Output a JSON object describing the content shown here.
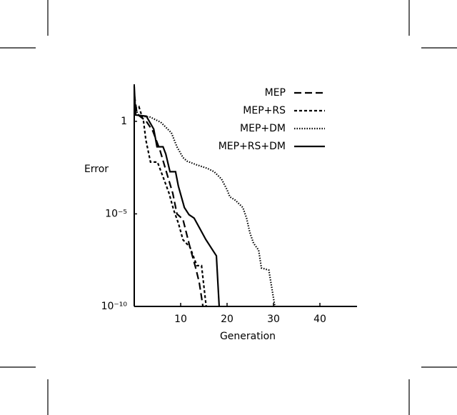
{
  "chart_data": {
    "type": "line",
    "x_label": "Generation",
    "y_label": "Error",
    "yscale": "log",
    "xlim": [
      0,
      48
    ],
    "xticks": [
      10,
      20,
      30,
      40
    ],
    "ylim": [
      1e-10,
      100
    ],
    "yticks": [
      1,
      {
        "value": 1e-05,
        "label": "10⁻⁵"
      },
      {
        "value": 1e-10,
        "label": "10⁻¹⁰"
      }
    ],
    "grid": false,
    "legend": "top-right",
    "series": [
      {
        "name": "MEP",
        "color": "#000000",
        "linestyle": "dashed",
        "x": [
          0,
          0.6,
          2.6,
          4,
          5.5,
          7,
          8.3,
          9.2,
          10.5,
          12,
          13.2,
          14,
          14.8
        ],
        "values": [
          30,
          2.5,
          1,
          0.3,
          0.03,
          0.0016,
          0.00013,
          1e-05,
          5e-06,
          1.6e-07,
          1.3e-08,
          2e-09,
          1e-10
        ]
      },
      {
        "name": "MEP+RS",
        "color": "#000000",
        "linestyle": "short-dashed",
        "x": [
          0,
          1,
          2,
          2.5,
          3.5,
          5,
          6.2,
          7.5,
          8.5,
          9.5,
          10.5,
          12,
          13.5,
          14.5,
          15.5
        ],
        "values": [
          5,
          6.3,
          1,
          0.1,
          0.0063,
          0.0063,
          0.001,
          0.00013,
          1.6e-05,
          3.2e-06,
          4e-07,
          1.6e-07,
          1.6e-08,
          1.6e-08,
          1e-10
        ]
      },
      {
        "name": "MEP+DM",
        "color": "#000000",
        "linestyle": "dotted",
        "x": [
          0,
          1.1,
          3.4,
          5.7,
          8,
          9.2,
          10.5,
          11.4,
          13.4,
          15.7,
          17.2,
          18.8,
          20,
          20.6,
          21.8,
          23.4,
          24.2,
          24.9,
          25.7,
          26.8,
          27.4,
          29,
          30.3
        ],
        "values": [
          5.4,
          1.9,
          1.7,
          0.9,
          0.24,
          0.042,
          0.011,
          0.007,
          0.0045,
          0.0029,
          0.0019,
          0.00076,
          0.0002,
          8.3e-05,
          5.4e-05,
          2.2e-05,
          5.9e-06,
          1e-06,
          2.6e-07,
          1.1e-07,
          1.2e-08,
          9.1e-09,
          1e-10
        ]
      },
      {
        "name": "MEP+RS+DM",
        "color": "#000000",
        "linestyle": "solid",
        "x": [
          0,
          0.3,
          2.6,
          4.2,
          4.9,
          6.2,
          6.8,
          7.7,
          8.9,
          9.5,
          10.8,
          11.8,
          12.9,
          14.2,
          15.4,
          16.9,
          17.7,
          18.3
        ],
        "values": [
          76,
          2.2,
          1.9,
          0.38,
          0.042,
          0.042,
          0.017,
          0.0019,
          0.0019,
          0.00032,
          2.2e-05,
          9e-06,
          5.9e-06,
          1.5e-06,
          4.2e-07,
          1.1e-07,
          5.4e-08,
          1e-10
        ]
      }
    ]
  }
}
